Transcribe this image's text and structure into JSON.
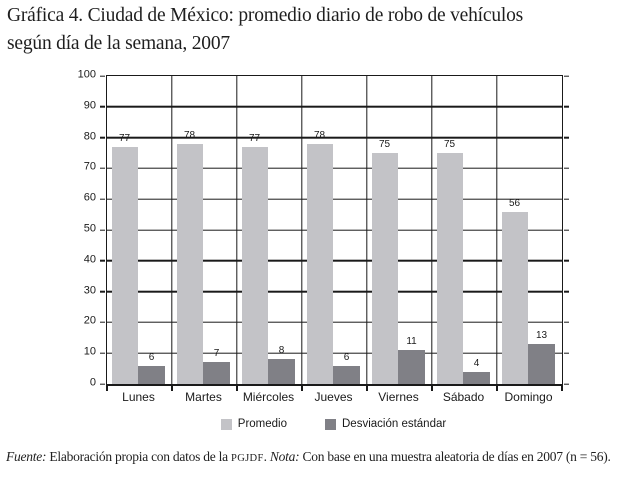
{
  "title_lines": [
    "Gráfica 4. Ciudad de México: promedio diario de robo de vehículos",
    "según día de la semana, 2007"
  ],
  "colors": {
    "promedio_bar": "#c3c3c7",
    "desviacion_bar": "#808086",
    "grid_line": "#1a1a1a",
    "background": "#ffffff"
  },
  "chart_data": {
    "type": "bar",
    "title": "Gráfica 4. Ciudad de México: promedio diario de robo de vehículos según día de la semana, 2007",
    "categories": [
      "Lunes",
      "Martes",
      "Miércoles",
      "Jueves",
      "Viernes",
      "Sábado",
      "Domingo"
    ],
    "series": [
      {
        "name": "Promedio",
        "color": "#c3c3c7",
        "values": [
          77,
          78,
          77,
          78,
          75,
          75,
          56
        ]
      },
      {
        "name": "Desviación estándar",
        "color": "#808086",
        "values": [
          6,
          7,
          8,
          6,
          11,
          4,
          13
        ]
      }
    ],
    "xlabel": "",
    "ylabel": "",
    "ylim": [
      0,
      100
    ],
    "y_ticks": [
      0,
      10,
      20,
      30,
      40,
      50,
      60,
      70,
      80,
      90,
      100
    ],
    "grid": true,
    "legend_position": "bottom",
    "data_labels": true
  },
  "footer": {
    "fuente_label": "Fuente:",
    "fuente_text": " Elaboración propia con datos de la ",
    "pgjdf": "PGJDF",
    "after_pgjdf": ". ",
    "nota_label": "Nota:",
    "nota_text": " Con base en una muestra aleatoria de días en 2007 (n = 56)."
  }
}
